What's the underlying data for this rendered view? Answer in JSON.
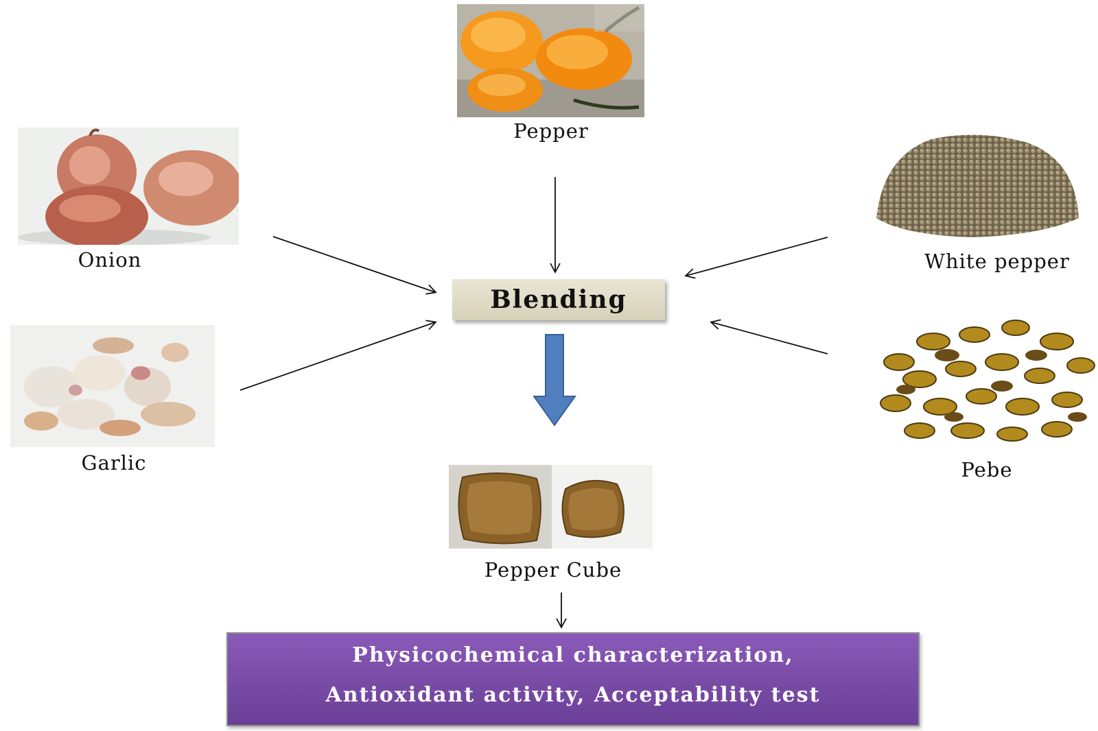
{
  "ingredients": {
    "pepper": "Pepper",
    "onion": "Onion",
    "garlic": "Garlic",
    "white_pepper": "White pepper",
    "pebe": "Pebe"
  },
  "process": {
    "blending": "Blending",
    "product": "Pepper Cube"
  },
  "result": {
    "line1": "Physicochemical characterization,",
    "line2": "Antioxidant activity, Acceptability test"
  },
  "colors": {
    "blend_box": "#e2dfcb",
    "result_box": "#7a4da8",
    "down_arrow": "#4f7fbf"
  }
}
